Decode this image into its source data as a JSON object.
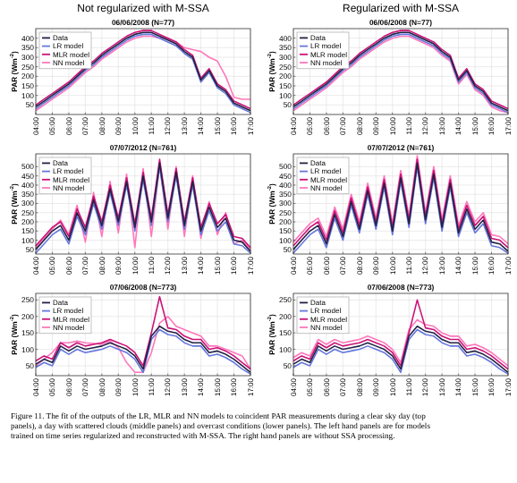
{
  "chart_data": [
    {
      "type": "line",
      "title": "Not regularized with M-SSA",
      "subtitle": "06/06/2008 (N=77)",
      "ylabel": "PAR (Wm$^{-2}$)",
      "x": [
        4,
        4.5,
        5,
        5.5,
        6,
        6.5,
        7,
        7.5,
        8,
        8.5,
        9,
        9.5,
        10,
        10.5,
        11,
        11.5,
        12,
        12.5,
        13,
        13.5,
        14,
        14.5,
        15,
        15.5,
        16,
        16.5,
        17
      ],
      "xlim": [
        4,
        17
      ],
      "xticks": [
        {
          "value": 4,
          "label": "04:00"
        },
        {
          "value": 5,
          "label": "05:00"
        },
        {
          "value": 6,
          "label": "06:00"
        },
        {
          "value": 7,
          "label": "07:00"
        },
        {
          "value": 8,
          "label": "08:00"
        },
        {
          "value": 9,
          "label": "09:00"
        },
        {
          "value": 10,
          "label": "10:00"
        },
        {
          "value": 11,
          "label": "11:00"
        },
        {
          "value": 12,
          "label": "12:00"
        },
        {
          "value": 13,
          "label": "13:00"
        },
        {
          "value": 14,
          "label": "14:00"
        },
        {
          "value": 15,
          "label": "15:00"
        },
        {
          "value": 16,
          "label": "16:00"
        },
        {
          "value": 17,
          "label": "17:00"
        }
      ],
      "ylim": [
        0,
        450
      ],
      "yticks": [
        50,
        100,
        150,
        200,
        250,
        300,
        350,
        400
      ],
      "grid": true,
      "legend": "top left",
      "series": [
        {
          "name": "Data",
          "color": "#222244",
          "values": [
            40,
            70,
            100,
            130,
            160,
            200,
            240,
            270,
            310,
            340,
            370,
            400,
            420,
            430,
            430,
            410,
            390,
            370,
            330,
            300,
            180,
            230,
            150,
            120,
            60,
            40,
            20
          ]
        },
        {
          "name": "LR model",
          "color": "#6677dd",
          "values": [
            30,
            60,
            90,
            120,
            150,
            190,
            230,
            260,
            300,
            330,
            360,
            390,
            410,
            420,
            420,
            400,
            380,
            360,
            320,
            290,
            170,
            220,
            140,
            110,
            50,
            30,
            10
          ]
        },
        {
          "name": "MLR model",
          "color": "#cc1177",
          "values": [
            50,
            80,
            110,
            140,
            170,
            210,
            250,
            280,
            320,
            350,
            380,
            410,
            430,
            440,
            440,
            420,
            400,
            380,
            340,
            310,
            190,
            240,
            160,
            130,
            70,
            50,
            30
          ]
        },
        {
          "name": "NN model",
          "color": "#ff77bb",
          "values": [
            20,
            50,
            80,
            110,
            140,
            180,
            220,
            250,
            290,
            320,
            350,
            380,
            400,
            410,
            410,
            400,
            400,
            380,
            350,
            340,
            330,
            300,
            280,
            200,
            90,
            80,
            80
          ]
        }
      ]
    },
    {
      "type": "line",
      "title": "Regularized with M-SSA",
      "subtitle": "06/06/2008 (N=77)",
      "ylabel": "PAR (Wm$^{-2}$)",
      "x": [
        4,
        4.5,
        5,
        5.5,
        6,
        6.5,
        7,
        7.5,
        8,
        8.5,
        9,
        9.5,
        10,
        10.5,
        11,
        11.5,
        12,
        12.5,
        13,
        13.5,
        14,
        14.5,
        15,
        15.5,
        16,
        16.5,
        17
      ],
      "xlim": [
        4,
        17
      ],
      "xticks": [
        {
          "value": 4,
          "label": "04:00"
        },
        {
          "value": 5,
          "label": "05:00"
        },
        {
          "value": 6,
          "label": "06:00"
        },
        {
          "value": 7,
          "label": "07:00"
        },
        {
          "value": 8,
          "label": "08:00"
        },
        {
          "value": 9,
          "label": "09:00"
        },
        {
          "value": 10,
          "label": "10:00"
        },
        {
          "value": 11,
          "label": "11:00"
        },
        {
          "value": 12,
          "label": "12:00"
        },
        {
          "value": 13,
          "label": "13:00"
        },
        {
          "value": 14,
          "label": "14:00"
        },
        {
          "value": 15,
          "label": "15:00"
        },
        {
          "value": 16,
          "label": "16:00"
        },
        {
          "value": 17,
          "label": "17:00"
        }
      ],
      "ylim": [
        0,
        450
      ],
      "yticks": [
        50,
        100,
        150,
        200,
        250,
        300,
        350,
        400
      ],
      "grid": true,
      "legend": "top left",
      "series": [
        {
          "name": "Data",
          "color": "#222244",
          "values": [
            40,
            70,
            100,
            130,
            160,
            200,
            240,
            270,
            310,
            340,
            370,
            400,
            420,
            430,
            430,
            410,
            390,
            370,
            330,
            300,
            180,
            230,
            150,
            120,
            60,
            40,
            20
          ]
        },
        {
          "name": "LR model",
          "color": "#6677dd",
          "values": [
            30,
            60,
            90,
            120,
            150,
            190,
            230,
            260,
            300,
            330,
            360,
            390,
            410,
            420,
            420,
            400,
            380,
            360,
            320,
            290,
            170,
            220,
            140,
            110,
            50,
            30,
            10
          ]
        },
        {
          "name": "MLR model",
          "color": "#cc1177",
          "values": [
            50,
            80,
            110,
            140,
            170,
            210,
            250,
            280,
            320,
            350,
            380,
            410,
            430,
            440,
            440,
            420,
            400,
            380,
            340,
            310,
            190,
            240,
            160,
            130,
            70,
            50,
            30
          ]
        },
        {
          "name": "NN model",
          "color": "#ff77bb",
          "values": [
            20,
            50,
            80,
            110,
            140,
            180,
            220,
            250,
            290,
            320,
            350,
            380,
            400,
            410,
            410,
            390,
            370,
            350,
            310,
            280,
            160,
            210,
            130,
            100,
            40,
            20,
            10
          ]
        }
      ]
    },
    {
      "type": "line",
      "title": "07/07/2012 (N=761)",
      "ylabel": "PAR (Wm$^{-2}$)",
      "x": [
        4,
        4.5,
        5,
        5.5,
        6,
        6.5,
        7,
        7.5,
        8,
        8.5,
        9,
        9.5,
        10,
        10.5,
        11,
        11.5,
        12,
        12.5,
        13,
        13.5,
        14,
        14.5,
        15,
        15.5,
        16,
        16.5,
        17
      ],
      "xlim": [
        4,
        17
      ],
      "xticks": [
        {
          "value": 4,
          "label": "04:00"
        },
        {
          "value": 5,
          "label": "05:00"
        },
        {
          "value": 6,
          "label": "06:00"
        },
        {
          "value": 7,
          "label": "07:00"
        },
        {
          "value": 8,
          "label": "08:00"
        },
        {
          "value": 9,
          "label": "09:00"
        },
        {
          "value": 10,
          "label": "10:00"
        },
        {
          "value": 11,
          "label": "11:00"
        },
        {
          "value": 12,
          "label": "12:00"
        },
        {
          "value": 13,
          "label": "13:00"
        },
        {
          "value": 14,
          "label": "14:00"
        },
        {
          "value": 15,
          "label": "15:00"
        },
        {
          "value": 16,
          "label": "16:00"
        },
        {
          "value": 17,
          "label": "17:00"
        }
      ],
      "ylim": [
        25,
        570
      ],
      "yticks": [
        50,
        100,
        150,
        200,
        250,
        300,
        350,
        400,
        450,
        500
      ],
      "grid": true,
      "legend": "top left",
      "series": [
        {
          "name": "Data",
          "color": "#222244",
          "values": [
            50,
            100,
            150,
            180,
            100,
            250,
            150,
            320,
            180,
            380,
            200,
            420,
            170,
            450,
            200,
            520,
            220,
            470,
            180,
            420,
            150,
            280,
            170,
            220,
            100,
            90,
            40
          ]
        },
        {
          "name": "LR model",
          "color": "#6677dd",
          "values": [
            30,
            80,
            130,
            160,
            80,
            230,
            130,
            300,
            160,
            360,
            180,
            400,
            150,
            430,
            180,
            500,
            200,
            450,
            160,
            400,
            130,
            260,
            150,
            200,
            80,
            70,
            30
          ]
        },
        {
          "name": "MLR model",
          "color": "#cc1177",
          "values": [
            70,
            120,
            170,
            200,
            120,
            270,
            170,
            340,
            200,
            400,
            220,
            440,
            190,
            470,
            220,
            540,
            240,
            490,
            200,
            440,
            170,
            300,
            190,
            240,
            120,
            110,
            60
          ]
        },
        {
          "name": "NN model",
          "color": "#ff77bb",
          "values": [
            60,
            110,
            160,
            210,
            130,
            290,
            90,
            360,
            120,
            420,
            140,
            460,
            60,
            490,
            120,
            510,
            160,
            500,
            120,
            450,
            110,
            310,
            130,
            250,
            80,
            100,
            50
          ]
        }
      ]
    },
    {
      "type": "line",
      "title": "07/07/2012 (N=761)",
      "ylabel": "PAR (Wm$^{-2}$)",
      "x": [
        4,
        4.5,
        5,
        5.5,
        6,
        6.5,
        7,
        7.5,
        8,
        8.5,
        9,
        9.5,
        10,
        10.5,
        11,
        11.5,
        12,
        12.5,
        13,
        13.5,
        14,
        14.5,
        15,
        15.5,
        16,
        16.5,
        17
      ],
      "xlim": [
        4,
        17
      ],
      "xticks": [
        {
          "value": 4,
          "label": "04:00"
        },
        {
          "value": 5,
          "label": "05:00"
        },
        {
          "value": 6,
          "label": "06:00"
        },
        {
          "value": 7,
          "label": "07:00"
        },
        {
          "value": 8,
          "label": "08:00"
        },
        {
          "value": 9,
          "label": "09:00"
        },
        {
          "value": 10,
          "label": "10:00"
        },
        {
          "value": 11,
          "label": "11:00"
        },
        {
          "value": 12,
          "label": "12:00"
        },
        {
          "value": 13,
          "label": "13:00"
        },
        {
          "value": 14,
          "label": "14:00"
        },
        {
          "value": 15,
          "label": "15:00"
        },
        {
          "value": 16,
          "label": "16:00"
        },
        {
          "value": 17,
          "label": "17:00"
        }
      ],
      "ylim": [
        25,
        570
      ],
      "yticks": [
        50,
        100,
        150,
        200,
        250,
        300,
        350,
        400,
        450,
        500
      ],
      "grid": true,
      "legend": "top left",
      "series": [
        {
          "name": "Data",
          "color": "#222244",
          "values": [
            50,
            100,
            150,
            180,
            80,
            240,
            120,
            310,
            160,
            370,
            180,
            410,
            150,
            440,
            190,
            520,
            210,
            460,
            170,
            410,
            140,
            270,
            160,
            210,
            90,
            80,
            40
          ]
        },
        {
          "name": "LR model",
          "color": "#6677dd",
          "values": [
            30,
            80,
            130,
            160,
            60,
            220,
            100,
            290,
            140,
            350,
            160,
            390,
            130,
            420,
            170,
            500,
            190,
            440,
            150,
            390,
            120,
            250,
            140,
            190,
            70,
            60,
            30
          ]
        },
        {
          "name": "MLR model",
          "color": "#cc1177",
          "values": [
            70,
            120,
            170,
            200,
            100,
            260,
            140,
            330,
            180,
            390,
            200,
            430,
            170,
            460,
            210,
            540,
            230,
            480,
            190,
            430,
            160,
            290,
            180,
            230,
            110,
            100,
            60
          ]
        },
        {
          "name": "NN model",
          "color": "#ff77bb",
          "values": [
            90,
            140,
            190,
            220,
            120,
            280,
            160,
            350,
            200,
            410,
            220,
            450,
            190,
            480,
            230,
            560,
            250,
            500,
            210,
            450,
            180,
            310,
            200,
            250,
            130,
            120,
            80
          ]
        }
      ]
    },
    {
      "type": "line",
      "title": "07/06/2008 (N=773)",
      "ylabel": "PAR (Wm$^{-2}$)",
      "x": [
        4,
        4.5,
        5,
        5.5,
        6,
        6.5,
        7,
        7.5,
        8,
        8.5,
        9,
        9.5,
        10,
        10.5,
        11,
        11.5,
        12,
        12.5,
        13,
        13.5,
        14,
        14.5,
        15,
        15.5,
        16,
        16.5,
        17
      ],
      "xlim": [
        4,
        17
      ],
      "xticks": [
        {
          "value": 4,
          "label": "04:00"
        },
        {
          "value": 5,
          "label": "05:00"
        },
        {
          "value": 6,
          "label": "06:00"
        },
        {
          "value": 7,
          "label": "07:00"
        },
        {
          "value": 8,
          "label": "08:00"
        },
        {
          "value": 9,
          "label": "09:00"
        },
        {
          "value": 10,
          "label": "10:00"
        },
        {
          "value": 11,
          "label": "11:00"
        },
        {
          "value": 12,
          "label": "12:00"
        },
        {
          "value": 13,
          "label": "13:00"
        },
        {
          "value": 14,
          "label": "14:00"
        },
        {
          "value": 15,
          "label": "15:00"
        },
        {
          "value": 16,
          "label": "16:00"
        },
        {
          "value": 17,
          "label": "17:00"
        }
      ],
      "ylim": [
        20,
        270
      ],
      "yticks": [
        50,
        100,
        150,
        200,
        250
      ],
      "grid": true,
      "legend": "top left",
      "series": [
        {
          "name": "Data",
          "color": "#222244",
          "values": [
            55,
            70,
            60,
            110,
            95,
            110,
            100,
            105,
            110,
            120,
            110,
            100,
            80,
            40,
            140,
            170,
            155,
            150,
            130,
            120,
            120,
            90,
            95,
            85,
            70,
            50,
            30
          ]
        },
        {
          "name": "LR model",
          "color": "#6677dd",
          "values": [
            45,
            60,
            50,
            100,
            85,
            100,
            90,
            95,
            100,
            110,
            100,
            90,
            70,
            30,
            130,
            160,
            145,
            140,
            120,
            110,
            110,
            80,
            85,
            75,
            60,
            40,
            25
          ]
        },
        {
          "name": "MLR model",
          "color": "#cc1177",
          "values": [
            65,
            80,
            70,
            120,
            105,
            120,
            110,
            115,
            120,
            130,
            120,
            110,
            90,
            50,
            150,
            260,
            165,
            160,
            140,
            130,
            130,
            100,
            105,
            95,
            80,
            60,
            40
          ]
        },
        {
          "name": "NN model",
          "color": "#ff77bb",
          "values": [
            50,
            70,
            90,
            120,
            120,
            125,
            120,
            118,
            115,
            125,
            105,
            60,
            30,
            30,
            90,
            180,
            200,
            170,
            160,
            150,
            140,
            110,
            110,
            100,
            90,
            80,
            40
          ]
        }
      ]
    },
    {
      "type": "line",
      "title": "07/06/2008 (N=773)",
      "ylabel": "PAR (Wm$^{-2}$)",
      "x": [
        4,
        4.5,
        5,
        5.5,
        6,
        6.5,
        7,
        7.5,
        8,
        8.5,
        9,
        9.5,
        10,
        10.5,
        11,
        11.5,
        12,
        12.5,
        13,
        13.5,
        14,
        14.5,
        15,
        15.5,
        16,
        16.5,
        17
      ],
      "xlim": [
        4,
        17
      ],
      "xticks": [
        {
          "value": 4,
          "label": "04:00"
        },
        {
          "value": 5,
          "label": "05:00"
        },
        {
          "value": 6,
          "label": "06:00"
        },
        {
          "value": 7,
          "label": "07:00"
        },
        {
          "value": 8,
          "label": "08:00"
        },
        {
          "value": 9,
          "label": "09:00"
        },
        {
          "value": 10,
          "label": "10:00"
        },
        {
          "value": 11,
          "label": "11:00"
        },
        {
          "value": 12,
          "label": "12:00"
        },
        {
          "value": 13,
          "label": "13:00"
        },
        {
          "value": 14,
          "label": "14:00"
        },
        {
          "value": 15,
          "label": "15:00"
        },
        {
          "value": 16,
          "label": "16:00"
        },
        {
          "value": 17,
          "label": "17:00"
        }
      ],
      "ylim": [
        20,
        270
      ],
      "yticks": [
        50,
        100,
        150,
        200,
        250
      ],
      "grid": true,
      "legend": "top left",
      "series": [
        {
          "name": "Data",
          "color": "#222244",
          "values": [
            55,
            70,
            60,
            110,
            95,
            110,
            100,
            105,
            110,
            120,
            110,
            100,
            80,
            40,
            140,
            170,
            155,
            150,
            130,
            120,
            120,
            90,
            95,
            85,
            70,
            50,
            30
          ]
        },
        {
          "name": "LR model",
          "color": "#6677dd",
          "values": [
            45,
            60,
            50,
            100,
            85,
            100,
            90,
            95,
            100,
            110,
            100,
            90,
            70,
            30,
            130,
            160,
            145,
            140,
            120,
            110,
            110,
            80,
            85,
            75,
            60,
            40,
            25
          ]
        },
        {
          "name": "MLR model",
          "color": "#cc1177",
          "values": [
            65,
            80,
            70,
            120,
            105,
            120,
            110,
            115,
            120,
            130,
            120,
            110,
            90,
            50,
            150,
            250,
            165,
            160,
            140,
            130,
            130,
            100,
            105,
            95,
            80,
            60,
            40
          ]
        },
        {
          "name": "NN model",
          "color": "#ff77bb",
          "values": [
            75,
            90,
            80,
            130,
            115,
            130,
            120,
            125,
            130,
            140,
            130,
            120,
            100,
            60,
            160,
            190,
            175,
            170,
            150,
            140,
            140,
            110,
            115,
            105,
            90,
            70,
            50
          ]
        }
      ]
    },
    {
      "type": "other",
      "annotations": [
        "Figure 11. The fit of the outputs of the LR, MLR and NN models to coincident PAR measurements during a clear sky day (top panels), a day with scattered clouds (middle panels) and overcast conditions (lower panels). The left hand panels are for models trained on time series regularized and reconstructed with M-SSA. The right hand panels are without SSA processing."
      ]
    }
  ]
}
